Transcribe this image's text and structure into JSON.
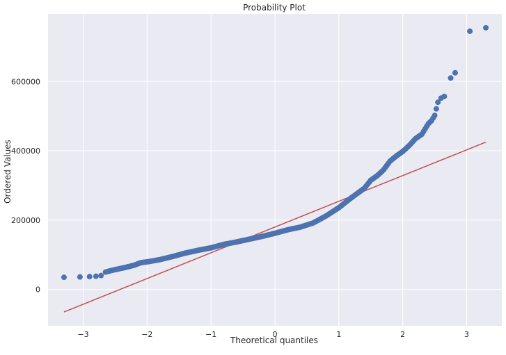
{
  "chart_data": {
    "type": "scatter",
    "title": "Probability Plot",
    "xlabel": "Theoretical quantiles",
    "ylabel": "Ordered Values",
    "xlim": [
      -3.55,
      3.55
    ],
    "ylim": [
      -105000,
      795000
    ],
    "x_ticks": [
      -3,
      -2,
      -1,
      0,
      1,
      2,
      3
    ],
    "x_tick_labels": [
      "−3",
      "−2",
      "−1",
      "0",
      "1",
      "2",
      "3"
    ],
    "y_ticks": [
      0,
      200000,
      400000,
      600000
    ],
    "y_tick_labels": [
      "0",
      "200000",
      "400000",
      "600000"
    ],
    "grid": true,
    "legend": null,
    "colors": {
      "background": "#eaeaf2",
      "grid": "#ffffff",
      "points": "#4c72b0",
      "fit_line": "#c44e52"
    },
    "series": [
      {
        "kind": "scatter",
        "x": [
          -3.3,
          -3.05,
          -2.9,
          -2.8,
          -2.72,
          -2.65,
          -2.55,
          -2.45,
          -2.35,
          -2.2,
          -2.1,
          -1.95,
          -1.8,
          -1.6,
          -1.4,
          -1.2,
          -1.0,
          -0.8,
          -0.6,
          -0.4,
          -0.2,
          0.0,
          0.2,
          0.4,
          0.6,
          0.8,
          1.0,
          1.2,
          1.4,
          1.5,
          1.6,
          1.7,
          1.8,
          1.9,
          2.0,
          2.1,
          2.2,
          2.3,
          2.35,
          2.4,
          2.45,
          2.5,
          2.55,
          2.6,
          2.65,
          2.75,
          2.82,
          3.05,
          3.3
        ],
        "y": [
          35000,
          36000,
          37000,
          38000,
          40000,
          50000,
          55000,
          59000,
          63000,
          70000,
          77000,
          81000,
          86000,
          95000,
          105000,
          113000,
          120000,
          130000,
          137000,
          145000,
          153000,
          162000,
          172000,
          180000,
          192000,
          212000,
          236000,
          265000,
          292000,
          315000,
          328000,
          345000,
          370000,
          385000,
          398000,
          415000,
          435000,
          448000,
          463000,
          478000,
          487000,
          502000,
          540000,
          552000,
          557000,
          610000,
          625000,
          745000,
          755000
        ]
      },
      {
        "kind": "line",
        "x": [
          -3.3,
          3.3
        ],
        "y": [
          -65000,
          425000
        ]
      }
    ]
  }
}
